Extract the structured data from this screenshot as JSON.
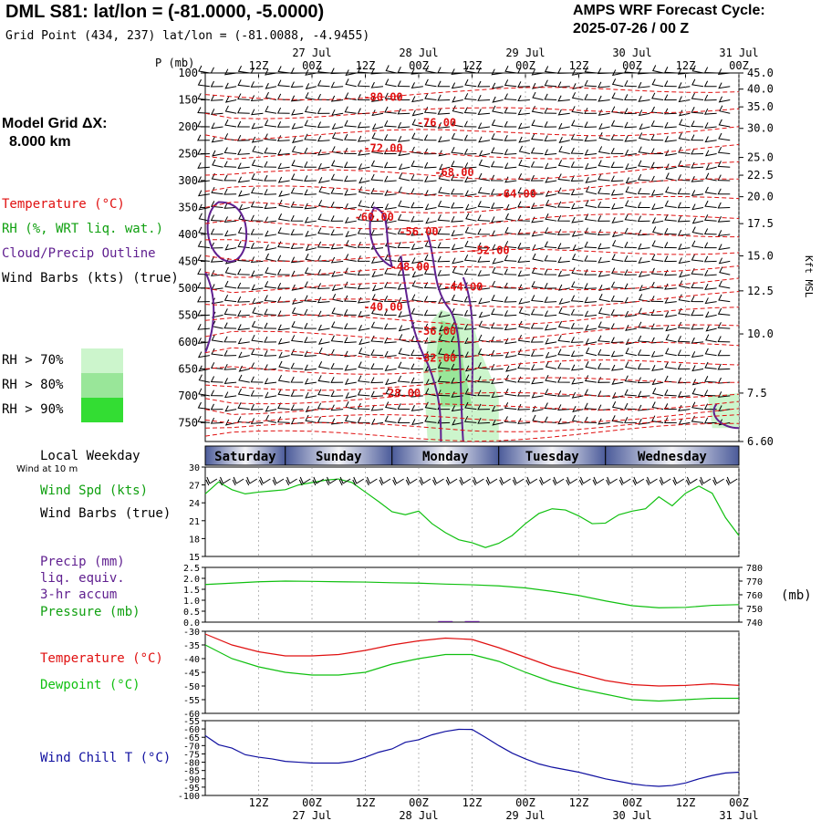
{
  "header": {
    "title": "DML S81:  lat/lon = (-81.0000, -5.0000)",
    "subtitle": "Grid Point (434, 237) lat/lon = (-81.0088, -4.9455)",
    "cycle_line1": "AMPS WRF Forecast Cycle:",
    "cycle_line2": "2025-07-26 / 00  Z"
  },
  "sidebar": {
    "grid_line1": "Model Grid ΔX:",
    "grid_line2": "8.000 km",
    "legend": [
      {
        "label": "Temperature (°C)",
        "color": "#e01010"
      },
      {
        "label": "RH (%, WRT liq. wat.)",
        "color": "#10a010"
      },
      {
        "label": "Cloud/Precip Outline",
        "color": "#602090"
      },
      {
        "label": "Wind Barbs (kts) (true)",
        "color": "#000000"
      }
    ],
    "rh_legend": [
      {
        "label": "RH > 70%",
        "color": "#ccf5cc"
      },
      {
        "label": "RH > 80%",
        "color": "#99e699"
      },
      {
        "label": "RH > 90%",
        "color": "#33dd33"
      }
    ]
  },
  "time_axis": {
    "ticks_hour": [
      "12Z",
      "00Z",
      "12Z",
      "00Z",
      "12Z",
      "00Z",
      "12Z",
      "00Z",
      "12Z",
      "00Z"
    ],
    "ticks_date": [
      "",
      "27 Jul",
      "",
      "28 Jul",
      "",
      "29 Jul",
      "",
      "30 Jul",
      "",
      "31 Jul"
    ],
    "tick_hours": [
      12,
      24,
      36,
      48,
      60,
      72,
      84,
      96,
      108,
      120
    ]
  },
  "weekdays": {
    "caption": "Local Weekday",
    "sub_caption": "Wind at 10 m",
    "days": [
      "Saturday",
      "Sunday",
      "Monday",
      "Tuesday",
      "Wednesday"
    ]
  },
  "chart_data": [
    {
      "type": "line",
      "name": "upper-air cross section",
      "ylabel": "P (mb)",
      "ylabel_right": "Kft MSL",
      "pressure_levels": [
        100,
        150,
        200,
        250,
        300,
        350,
        400,
        450,
        500,
        550,
        600,
        650,
        700,
        750
      ],
      "height_ticks": [
        "45.0",
        "40.0",
        "35.0",
        "30.0",
        "25.0",
        "22.5",
        "20.0",
        "17.5",
        "15.0",
        "12.5",
        "10.0",
        "7.5",
        "6.60"
      ],
      "height_tick_pressure": [
        100,
        130,
        163,
        203,
        257,
        290,
        330,
        380,
        440,
        505,
        585,
        695,
        785
      ],
      "temperature_contour_labels": [
        {
          "label": "-80.00",
          "hour": 40,
          "p": 145
        },
        {
          "label": "-76.00",
          "hour": 52,
          "p": 192
        },
        {
          "label": "-72.00",
          "hour": 40,
          "p": 240
        },
        {
          "label": "-68.00",
          "hour": 56,
          "p": 285
        },
        {
          "label": "-64.00",
          "hour": 70,
          "p": 325
        },
        {
          "label": "-60.00",
          "hour": 38,
          "p": 368
        },
        {
          "label": "-56.00",
          "hour": 48,
          "p": 395
        },
        {
          "label": "-52.00",
          "hour": 64,
          "p": 430
        },
        {
          "label": "-48.00",
          "hour": 46,
          "p": 460
        },
        {
          "label": "-44.00",
          "hour": 58,
          "p": 498
        },
        {
          "label": "-40.00",
          "hour": 40,
          "p": 535
        },
        {
          "label": "-36.00",
          "hour": 52,
          "p": 580
        },
        {
          "label": "-32.00",
          "hour": 52,
          "p": 630
        },
        {
          "label": "-28.00",
          "hour": 44,
          "p": 695
        }
      ]
    },
    {
      "type": "line",
      "name": "10 m wind speed",
      "ylabel": "Wind Spd (kts)",
      "ylabel2": "Wind Barbs (true)",
      "ylim": [
        15,
        30
      ],
      "yticks": [
        15,
        18,
        21,
        24,
        27,
        30
      ],
      "x": [
        0,
        3,
        6,
        9,
        12,
        15,
        18,
        21,
        24,
        27,
        30,
        33,
        36,
        39,
        42,
        45,
        48,
        51,
        54,
        57,
        60,
        63,
        66,
        69,
        72,
        75,
        78,
        81,
        84,
        87,
        90,
        93,
        96,
        99,
        102,
        105,
        108,
        111,
        114,
        117,
        120
      ],
      "series": [
        {
          "values": [
            25.5,
            27.5,
            26.2,
            25.5,
            25.8,
            26,
            26.2,
            27,
            27.4,
            27.8,
            28,
            27.4,
            25.8,
            24.2,
            22.5,
            22,
            22.6,
            20.5,
            19,
            17.8,
            17.3,
            16.5,
            17.2,
            18.5,
            20.5,
            22.2,
            23,
            22.8,
            21.8,
            20.5,
            20.6,
            22,
            22.6,
            23,
            25,
            23.5,
            25.6,
            26.8,
            25.6,
            21.5,
            18.5
          ]
        }
      ]
    },
    {
      "type": "line",
      "name": "precip and pressure",
      "ylabel": "Precip (mm)",
      "ylabel_lines": [
        "liq. equiv.",
        "3-hr accum",
        "Pressure (mb)"
      ],
      "y2label": "(mb)",
      "ylim": [
        0,
        2.5
      ],
      "yticks": [
        "0.0",
        "0.5",
        "1.0",
        "1.5",
        "2.0",
        "2.5"
      ],
      "y2lim": [
        740,
        780
      ],
      "y2ticks": [
        "740",
        "750",
        "760",
        "770",
        "780"
      ],
      "x": [
        0,
        6,
        12,
        18,
        24,
        30,
        36,
        42,
        48,
        54,
        60,
        66,
        72,
        78,
        84,
        90,
        96,
        102,
        108,
        114,
        120
      ],
      "pressure": [
        767.5,
        768.5,
        769.5,
        770,
        769.8,
        769.5,
        769.3,
        768.8,
        768.5,
        767.8,
        767.3,
        766.5,
        765,
        762.5,
        759.5,
        755.5,
        752,
        750.5,
        750.8,
        752.3,
        752.8
      ],
      "precip": [
        0,
        0,
        0,
        0,
        0,
        0,
        0,
        0,
        0,
        0.05,
        0.05,
        0,
        0,
        0,
        0,
        0,
        0,
        0,
        0,
        0,
        0
      ]
    },
    {
      "type": "line",
      "name": "temperature and dewpoint",
      "ylim": [
        -60,
        -30
      ],
      "yticks": [
        "-60",
        "-55",
        "-50",
        "-45",
        "-40",
        "-35",
        "-30"
      ],
      "x": [
        0,
        6,
        12,
        18,
        24,
        30,
        36,
        42,
        48,
        54,
        60,
        66,
        72,
        78,
        84,
        90,
        96,
        102,
        108,
        114,
        120
      ],
      "series": [
        {
          "name": "Temperature (°C)",
          "color": "#e01010",
          "values": [
            -31,
            -35,
            -37.5,
            -39,
            -39,
            -38.5,
            -37,
            -35,
            -33.5,
            -32.5,
            -33,
            -36,
            -39.5,
            -43,
            -45.5,
            -48,
            -49.5,
            -50,
            -49.8,
            -49.2,
            -49.8
          ]
        },
        {
          "name": "Dewpoint (°C)",
          "color": "#10c010",
          "values": [
            -35,
            -40,
            -43,
            -45,
            -46,
            -46,
            -45,
            -42,
            -40,
            -38.5,
            -38.5,
            -41,
            -45,
            -48.5,
            -51,
            -53,
            -55,
            -55.5,
            -55,
            -54.5,
            -54.5
          ]
        }
      ]
    },
    {
      "type": "line",
      "name": "wind chill",
      "ylim": [
        -100,
        -55
      ],
      "yticks": [
        "-100",
        "-95",
        "-90",
        "-85",
        "-80",
        "-75",
        "-70",
        "-65",
        "-60",
        "-55"
      ],
      "x": [
        0,
        3,
        6,
        9,
        12,
        15,
        18,
        21,
        24,
        27,
        30,
        33,
        36,
        39,
        42,
        45,
        48,
        51,
        54,
        57,
        60,
        63,
        66,
        69,
        72,
        75,
        78,
        81,
        84,
        87,
        90,
        93,
        96,
        99,
        102,
        105,
        108,
        111,
        114,
        117,
        120
      ],
      "series": [
        {
          "name": "Wind Chill T (°C)",
          "color": "#1010a0",
          "values": [
            -64,
            -69.5,
            -71.5,
            -75.5,
            -77,
            -78,
            -79.5,
            -80,
            -80.5,
            -80.5,
            -80.5,
            -79.5,
            -77,
            -74,
            -72,
            -68,
            -66.5,
            -63.5,
            -61.5,
            -60.2,
            -60.3,
            -65,
            -70,
            -74.5,
            -78,
            -81,
            -83,
            -84.5,
            -86,
            -88,
            -90,
            -91.5,
            -93,
            -94,
            -94.5,
            -94,
            -92.5,
            -90,
            -88,
            -86.5,
            -86
          ]
        }
      ]
    }
  ]
}
